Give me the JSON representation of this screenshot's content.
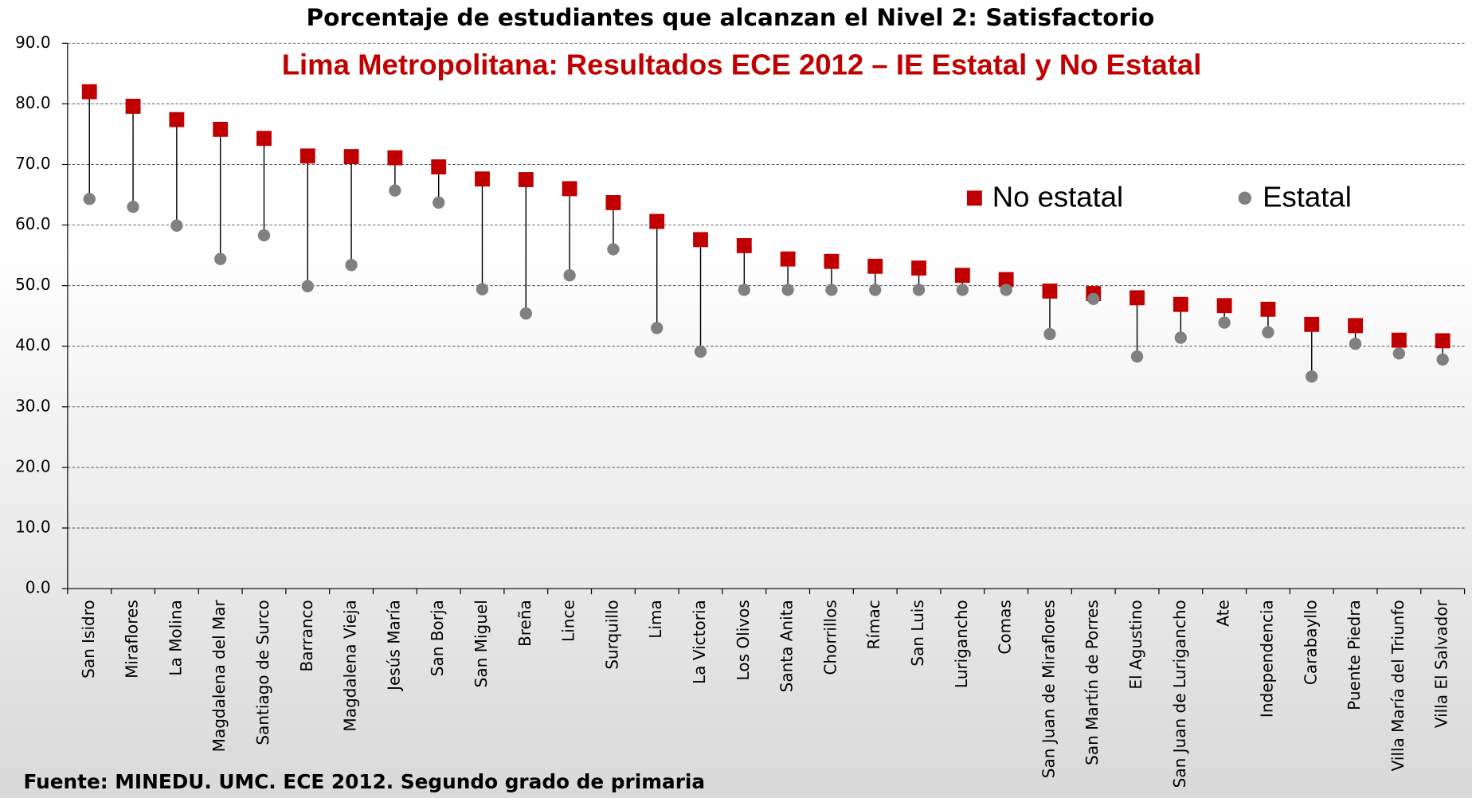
{
  "chart_data": {
    "type": "dumbbell",
    "title": "Porcentaje de estudiantes que alcanzan el Nivel 2: Satisfactorio",
    "subtitle": "Lima Metropolitana: Resultados ECE 2012 – IE Estatal y No Estatal",
    "source": "Fuente: MINEDU. UMC. ECE 2012. Segundo grado de primaria",
    "categories": [
      "San Isidro",
      "Miraflores",
      "La Molina",
      "Magdalena del Mar",
      "Santiago de Surco",
      "Barranco",
      "Magdalena Vieja",
      "Jesús María",
      "San Borja",
      "San Miguel",
      "Breña",
      "Lince",
      "Surquillo",
      "Lima",
      "La Victoria",
      "Los Olivos",
      "Santa Anita",
      "Chorrillos",
      "Rímac",
      "San Luis",
      "Lurigancho",
      "Comas",
      "San Juan de Miraflores",
      "San Martín de Porres",
      "El Agustino",
      "San Juan de Lurigancho",
      "Ate",
      "Independencia",
      "Carabayllo",
      "Puente Piedra",
      "Villa María del Triunfo",
      "Villa El Salvador"
    ],
    "series": [
      {
        "name": "No estatal",
        "color": "#c00000",
        "marker": "square",
        "values": [
          82,
          79.6,
          77.4,
          75.8,
          74.3,
          71.4,
          71.3,
          71.1,
          69.6,
          67.6,
          67.5,
          66,
          63.7,
          60.6,
          57.6,
          56.6,
          54.4,
          54,
          53.2,
          52.9,
          51.7,
          51,
          49.1,
          48.7,
          48,
          46.9,
          46.7,
          46.1,
          43.6,
          43.4,
          41,
          40.9
        ]
      },
      {
        "name": "Estatal",
        "color": "#808080",
        "marker": "circle",
        "values": [
          64.3,
          63,
          59.9,
          54.4,
          58.3,
          49.9,
          53.4,
          65.7,
          63.7,
          49.4,
          45.4,
          51.7,
          56,
          43,
          39.1,
          49.3,
          49.3,
          49.3,
          49.3,
          49.3,
          49.3,
          49.3,
          42,
          47.8,
          38.3,
          41.4,
          43.9,
          42.3,
          35,
          40.4,
          38.8,
          37.8
        ]
      }
    ],
    "ylim": [
      0,
      90
    ],
    "yticks": [
      {
        "value": 0,
        "label": "0.0"
      },
      {
        "value": 10,
        "label": "10.0"
      },
      {
        "value": 20,
        "label": "20.0"
      },
      {
        "value": 30,
        "label": "30.0"
      },
      {
        "value": 40,
        "label": "40.0"
      },
      {
        "value": 50,
        "label": "50.0"
      },
      {
        "value": 60,
        "label": "60.0"
      },
      {
        "value": 70,
        "label": "70.0"
      },
      {
        "value": 80,
        "label": "80.0"
      },
      {
        "value": 90,
        "label": "90.0"
      }
    ],
    "grid": true
  }
}
